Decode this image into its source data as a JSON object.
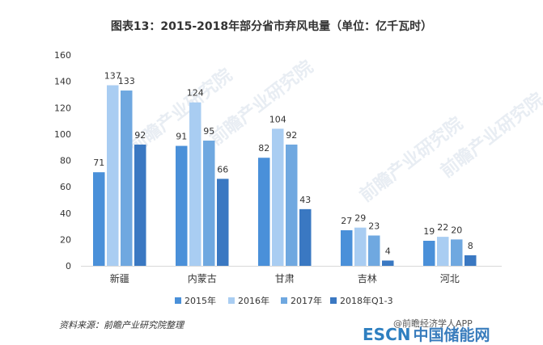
{
  "chart_data": {
    "type": "bar",
    "title": "图表13：2015-2018年部分省市弃风电量（单位：亿千瓦时）",
    "categories": [
      "新疆",
      "内蒙古",
      "甘肃",
      "吉林",
      "河北"
    ],
    "series": [
      {
        "name": "2015年",
        "values": [
          71,
          91,
          82,
          27,
          19
        ],
        "color": "#4a90d9"
      },
      {
        "name": "2016年",
        "values": [
          137,
          124,
          104,
          29,
          22
        ],
        "color": "#a9cdf2"
      },
      {
        "name": "2017年",
        "values": [
          133,
          95,
          92,
          23,
          20
        ],
        "color": "#6fa8e0"
      },
      {
        "name": "2018年Q1-3",
        "values": [
          92,
          66,
          43,
          4,
          8
        ],
        "color": "#3a78c2"
      }
    ],
    "ylim": [
      0,
      160
    ],
    "yticks": [
      "0",
      "20",
      "40",
      "60",
      "80",
      "100",
      "120",
      "140",
      "160"
    ],
    "xlabel": "",
    "ylabel": "",
    "grid": false,
    "legend": "bottom"
  },
  "footer": {
    "source": "资料来源：前瞻产业研究院整理",
    "app": "@前瞻经济学人APP",
    "logo_en": "ESCN",
    "logo_cn": "中国储能网"
  },
  "watermark": "前瞻产业研究院"
}
